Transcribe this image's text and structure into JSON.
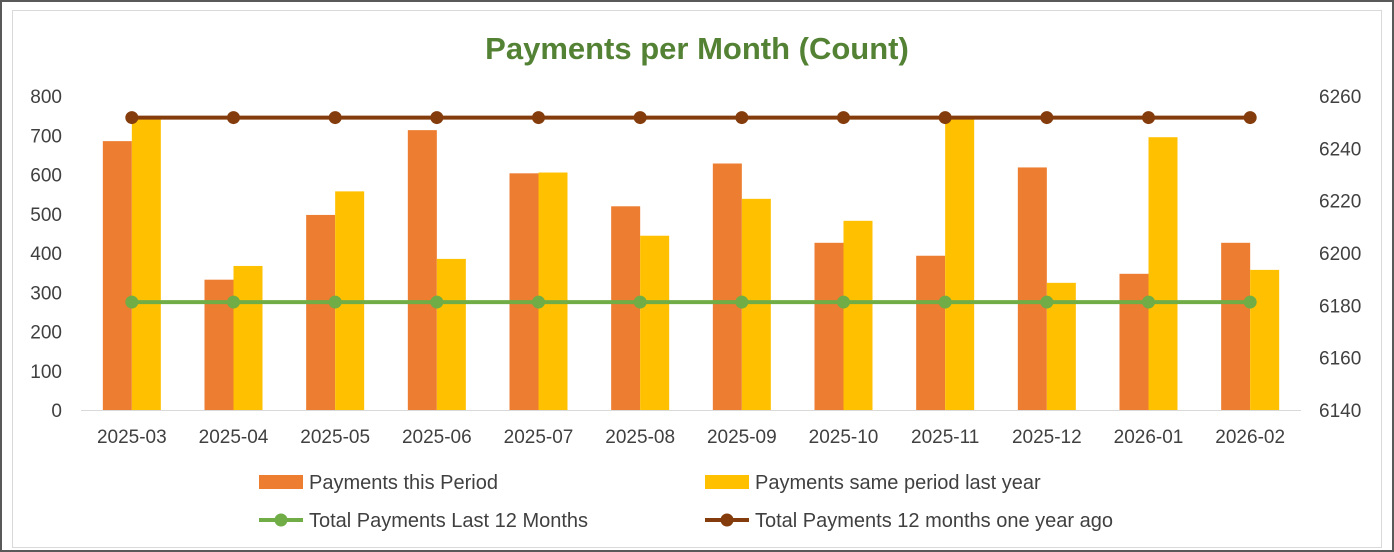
{
  "chart_data": {
    "type": "bar",
    "title": "Payments per Month (Count)",
    "categories": [
      "2025-03",
      "2025-04",
      "2025-05",
      "2025-06",
      "2025-07",
      "2025-08",
      "2025-09",
      "2025-10",
      "2025-11",
      "2025-12",
      "2026-01",
      "2026-02"
    ],
    "y_left": {
      "range": [
        0,
        800
      ],
      "ticks": [
        "0",
        "100",
        "200",
        "300",
        "400",
        "500",
        "600",
        "700",
        "800"
      ]
    },
    "y_right": {
      "range": [
        6140,
        6260
      ],
      "ticks": [
        "6140",
        "6160",
        "6180",
        "6200",
        "6220",
        "6240",
        "6260"
      ]
    },
    "grid": false,
    "legend_position": "bottom",
    "series": [
      {
        "name": "Payments this Period",
        "type": "bar",
        "axis": "left",
        "color": "#ED7D31",
        "values": [
          685,
          332,
          497,
          713,
          603,
          519,
          628,
          426,
          393,
          618,
          347,
          426
        ]
      },
      {
        "name": "Payments same period last year",
        "type": "bar",
        "axis": "left",
        "color": "#FFC000",
        "values": [
          745,
          367,
          557,
          385,
          605,
          444,
          538,
          482,
          748,
          324,
          695,
          357
        ]
      },
      {
        "name": "Total Payments Last 12 Months",
        "type": "line",
        "axis": "left",
        "color": "#70AD47",
        "values": [
          275,
          275,
          275,
          275,
          275,
          275,
          275,
          275,
          275,
          275,
          275,
          275
        ]
      },
      {
        "name": "Total Payments 12 months one year ago",
        "type": "line",
        "axis": "left",
        "color": "#843C0C",
        "values": [
          745,
          745,
          745,
          745,
          745,
          745,
          745,
          745,
          745,
          745,
          745,
          745
        ]
      }
    ]
  }
}
